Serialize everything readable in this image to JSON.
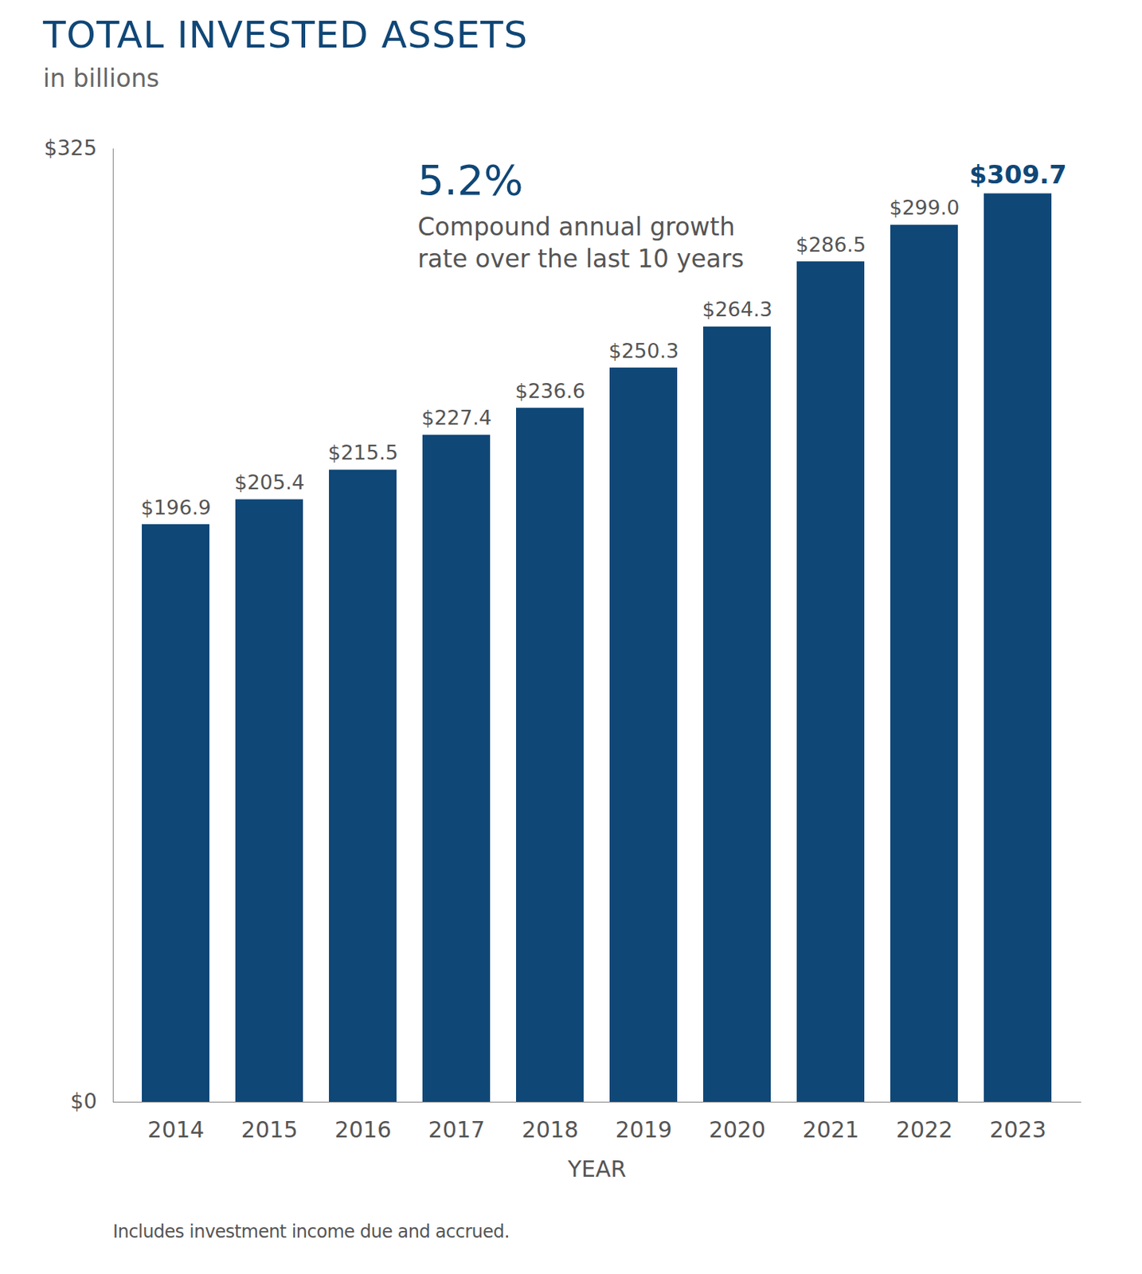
{
  "chart_data": {
    "type": "bar",
    "title": "TOTAL INVESTED ASSETS",
    "subtitle": "in billions",
    "categories": [
      "2014",
      "2015",
      "2016",
      "2017",
      "2018",
      "2019",
      "2020",
      "2021",
      "2022",
      "2023"
    ],
    "values": [
      196.9,
      205.4,
      215.5,
      227.4,
      236.6,
      250.3,
      264.3,
      286.5,
      299.0,
      309.7
    ],
    "value_labels": [
      "$196.9",
      "$205.4",
      "$215.5",
      "$227.4",
      "$236.6",
      "$250.3",
      "$264.3",
      "$286.5",
      "$299.0",
      "$309.7"
    ],
    "data_labels": true,
    "color": "#0f4777",
    "ylim": [
      0,
      325
    ],
    "yticks": [
      {
        "value": 0,
        "label": "$0"
      },
      {
        "value": 325,
        "label": "$325"
      }
    ],
    "xlabel": "YEAR",
    "annotations": [
      "5.2%",
      "Compound annual growth rate over the last 10 years"
    ],
    "note": "Includes investment income due and accrued."
  }
}
